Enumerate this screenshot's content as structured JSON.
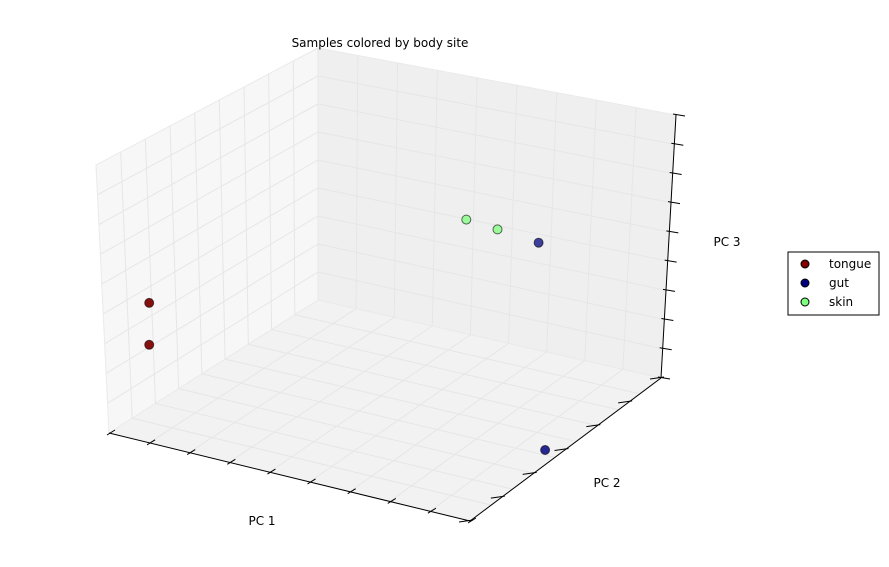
{
  "chart_data": {
    "type": "scatter",
    "projection": "3d",
    "title": "Samples colored by body site",
    "xlabel": "PC 1",
    "ylabel": "PC 2",
    "zlabel": "PC 3",
    "xlim": [
      0,
      1
    ],
    "ylim": [
      0,
      1
    ],
    "zlim": [
      0,
      1
    ],
    "grid": true,
    "legend_position": "right",
    "series": [
      {
        "name": "tongue",
        "color": "#7f0000",
        "points": [
          {
            "x": 0.1,
            "y": 0.02,
            "z": 0.52
          },
          {
            "x": 0.1,
            "y": 0.02,
            "z": 0.36
          }
        ]
      },
      {
        "name": "gut",
        "color": "#00007f",
        "points": [
          {
            "x": 0.74,
            "y": 0.83,
            "z": 0.53
          },
          {
            "x": 0.98,
            "y": 0.43,
            "z": 0.03
          }
        ]
      },
      {
        "name": "skin",
        "color": "#7fff7f",
        "points": [
          {
            "x": 0.56,
            "y": 0.78,
            "z": 0.59
          },
          {
            "x": 0.65,
            "y": 0.78,
            "z": 0.58
          }
        ]
      }
    ]
  }
}
